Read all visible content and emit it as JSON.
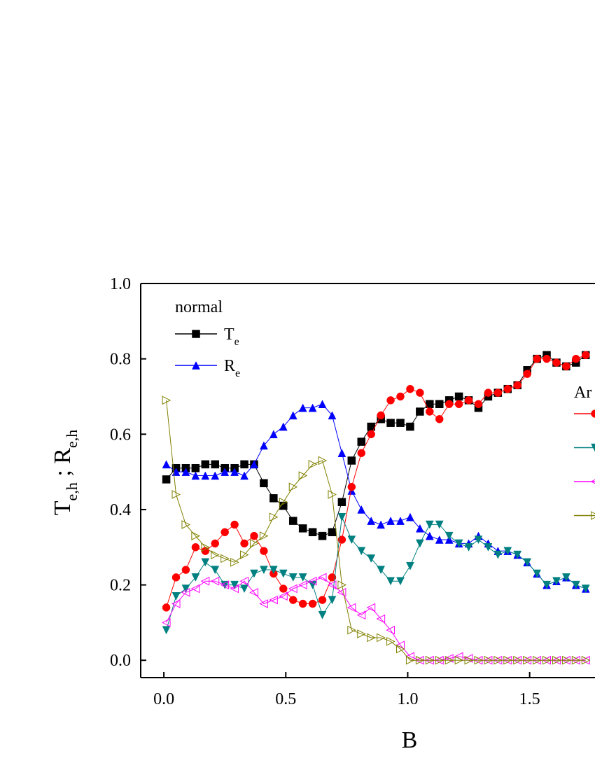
{
  "chart_data": {
    "type": "line",
    "xlabel": "B",
    "ylabel": [
      {
        "text": "T"
      },
      {
        "text": "e,h",
        "sub": true
      },
      {
        "text": " ; R"
      },
      {
        "text": "e,h",
        "sub": true
      }
    ],
    "xlim": [
      -0.095,
      1.768
    ],
    "ylim": [
      -0.046,
      1.0
    ],
    "xticks": [
      {
        "value": 0,
        "label": "0.0"
      },
      0.5,
      {
        "value": 1,
        "label": "1.0"
      },
      1.5
    ],
    "yticks": [
      {
        "value": 0,
        "label": "0.0"
      },
      0.2,
      0.4,
      0.6,
      0.8,
      {
        "value": 1,
        "label": "1.0"
      }
    ],
    "legend_title": "normal",
    "legend2_title": "Ar",
    "x": [
      0.01,
      0.05,
      0.09,
      0.13,
      0.17,
      0.21,
      0.25,
      0.29,
      0.33,
      0.37,
      0.41,
      0.45,
      0.49,
      0.53,
      0.57,
      0.61,
      0.65,
      0.69,
      0.73,
      0.77,
      0.81,
      0.85,
      0.89,
      0.93,
      0.97,
      1.01,
      1.05,
      1.09,
      1.13,
      1.17,
      1.21,
      1.25,
      1.29,
      1.33,
      1.37,
      1.41,
      1.45,
      1.49,
      1.53,
      1.57,
      1.61,
      1.65,
      1.69,
      1.73
    ],
    "series": [
      {
        "name": "T",
        "name_sub": "e",
        "color": "#000000",
        "marker": "square",
        "legend": 1,
        "values": [
          0.48,
          0.51,
          0.51,
          0.51,
          0.52,
          0.52,
          0.51,
          0.51,
          0.52,
          0.52,
          0.47,
          0.43,
          0.41,
          0.37,
          0.35,
          0.34,
          0.33,
          0.34,
          0.42,
          0.53,
          0.58,
          0.62,
          0.64,
          0.63,
          0.63,
          0.62,
          0.66,
          0.68,
          0.68,
          0.69,
          0.7,
          0.69,
          0.67,
          0.7,
          0.71,
          0.72,
          0.73,
          0.77,
          0.8,
          0.81,
          0.79,
          0.78,
          0.79,
          0.81
        ]
      },
      {
        "name": "R",
        "name_sub": "e",
        "color": "#0000ff",
        "marker": "triangle-up",
        "legend": 1,
        "values": [
          0.52,
          0.5,
          0.5,
          0.49,
          0.49,
          0.49,
          0.5,
          0.5,
          0.49,
          0.52,
          0.57,
          0.6,
          0.62,
          0.65,
          0.67,
          0.67,
          0.68,
          0.65,
          0.55,
          0.45,
          0.4,
          0.37,
          0.36,
          0.37,
          0.37,
          0.38,
          0.35,
          0.33,
          0.32,
          0.32,
          0.31,
          0.31,
          0.33,
          0.31,
          0.29,
          0.29,
          0.28,
          0.26,
          0.23,
          0.2,
          0.21,
          0.22,
          0.2,
          0.19
        ]
      },
      {
        "color": "#ff0000",
        "marker": "circle",
        "legend": 2,
        "values": [
          0.14,
          0.22,
          0.24,
          0.3,
          0.29,
          0.31,
          0.34,
          0.36,
          0.31,
          0.33,
          0.29,
          0.23,
          0.19,
          0.16,
          0.15,
          0.15,
          0.16,
          0.22,
          0.32,
          0.46,
          0.55,
          0.6,
          0.65,
          0.69,
          0.7,
          0.72,
          0.71,
          0.66,
          0.64,
          0.68,
          0.68,
          0.69,
          0.68,
          0.71,
          0.71,
          0.72,
          0.73,
          0.76,
          0.8,
          0.8,
          0.79,
          0.78,
          0.8,
          0.81
        ]
      },
      {
        "color": "#008080",
        "marker": "triangle-down",
        "legend": 2,
        "values": [
          0.08,
          0.17,
          0.19,
          0.22,
          0.26,
          0.24,
          0.2,
          0.2,
          0.19,
          0.23,
          0.24,
          0.24,
          0.23,
          0.22,
          0.22,
          0.2,
          0.12,
          0.16,
          0.38,
          0.32,
          0.29,
          0.27,
          0.24,
          0.21,
          0.21,
          0.25,
          0.31,
          0.36,
          0.36,
          0.33,
          0.31,
          0.3,
          0.32,
          0.3,
          0.28,
          0.29,
          0.28,
          0.26,
          0.23,
          0.2,
          0.21,
          0.22,
          0.2,
          0.19
        ]
      },
      {
        "color": "#ff00ff",
        "marker": "triangle-left-open",
        "legend": 2,
        "values": [
          0.1,
          0.15,
          0.18,
          0.19,
          0.21,
          0.21,
          0.2,
          0.19,
          0.21,
          0.18,
          0.15,
          0.16,
          0.17,
          0.19,
          0.2,
          0.21,
          0.22,
          0.2,
          0.18,
          0.14,
          0.12,
          0.14,
          0.11,
          0.08,
          0.04,
          0.01,
          0,
          0,
          0,
          0.005,
          0.01,
          0.005,
          0,
          0,
          0,
          0,
          0,
          0,
          0,
          0,
          0,
          0,
          0,
          0
        ]
      },
      {
        "color": "#808000",
        "marker": "triangle-right-open",
        "legend": 2,
        "values": [
          0.69,
          0.44,
          0.36,
          0.33,
          0.3,
          0.28,
          0.27,
          0.26,
          0.28,
          0.31,
          0.33,
          0.38,
          0.42,
          0.46,
          0.49,
          0.52,
          0.53,
          0.44,
          0.2,
          0.08,
          0.07,
          0.06,
          0.06,
          0.05,
          0.03,
          0,
          0,
          0,
          0,
          0,
          0,
          0,
          0,
          0,
          0,
          0,
          0,
          0,
          0,
          0,
          0,
          0,
          0,
          0
        ]
      }
    ]
  }
}
